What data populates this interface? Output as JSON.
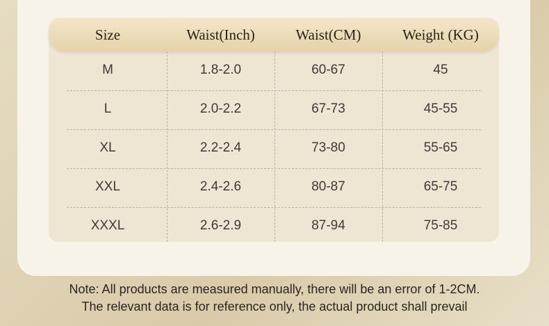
{
  "table": {
    "header": [
      "Size",
      "Waist(Inch)",
      "Waist(CM)",
      "Weight (KG)"
    ],
    "rows": [
      [
        "M",
        "1.8-2.0",
        "60-67",
        "45"
      ],
      [
        "L",
        "2.0-2.2",
        "67-73",
        "45-55"
      ],
      [
        "XL",
        "2.2-2.4",
        "73-80",
        "55-65"
      ],
      [
        "XXL",
        "2.4-2.6",
        "80-87",
        "65-75"
      ],
      [
        "XXXL",
        "2.6-2.9",
        "87-94",
        "75-85"
      ]
    ]
  },
  "note": [
    "Note: All products are measured manually, there will be an error of 1-2CM.",
    "The relevant data is for reference only, the actual product shall prevail"
  ]
}
